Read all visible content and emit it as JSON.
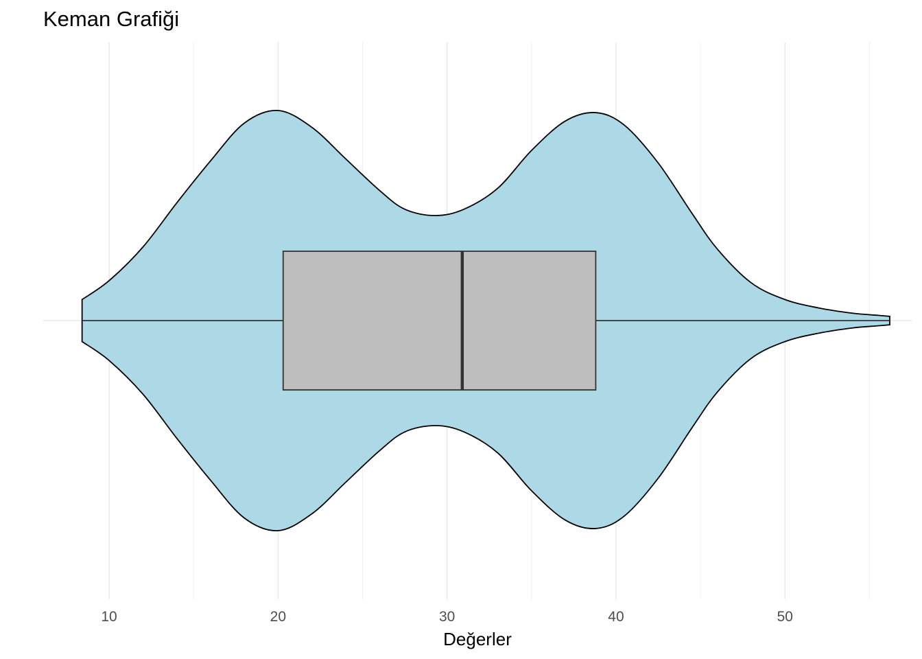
{
  "chart_data": {
    "type": "violin",
    "title": "Keman Grafiği",
    "xlabel": "Değerler",
    "ylabel": "",
    "xlim": [
      6.1,
      57.5
    ],
    "x_ticks": [
      10,
      20,
      30,
      40,
      50
    ],
    "x_tick_labels": [
      "10",
      "20",
      "30",
      "40",
      "50"
    ],
    "grid": true,
    "legend": "none",
    "violin": {
      "fill": "#ADD8E6",
      "stroke": "#000000",
      "range": [
        8.4,
        56.2
      ],
      "density": [
        {
          "x": 8.4,
          "w": 0.1
        },
        {
          "x": 10.0,
          "w": 0.19
        },
        {
          "x": 12.0,
          "w": 0.35
        },
        {
          "x": 14.0,
          "w": 0.56
        },
        {
          "x": 16.0,
          "w": 0.76
        },
        {
          "x": 18.0,
          "w": 0.94
        },
        {
          "x": 20.0,
          "w": 1.0
        },
        {
          "x": 22.0,
          "w": 0.92
        },
        {
          "x": 24.0,
          "w": 0.77
        },
        {
          "x": 26.0,
          "w": 0.62
        },
        {
          "x": 27.5,
          "w": 0.53
        },
        {
          "x": 29.3,
          "w": 0.5
        },
        {
          "x": 31.0,
          "w": 0.53
        },
        {
          "x": 33.0,
          "w": 0.63
        },
        {
          "x": 35.0,
          "w": 0.81
        },
        {
          "x": 37.0,
          "w": 0.95
        },
        {
          "x": 38.8,
          "w": 0.99
        },
        {
          "x": 40.5,
          "w": 0.93
        },
        {
          "x": 42.5,
          "w": 0.75
        },
        {
          "x": 44.5,
          "w": 0.51
        },
        {
          "x": 46.0,
          "w": 0.34
        },
        {
          "x": 48.0,
          "w": 0.18
        },
        {
          "x": 50.0,
          "w": 0.1
        },
        {
          "x": 52.0,
          "w": 0.06
        },
        {
          "x": 54.0,
          "w": 0.035
        },
        {
          "x": 55.5,
          "w": 0.025
        },
        {
          "x": 56.2,
          "w": 0.02
        }
      ]
    },
    "boxplot": {
      "fill": "#BEBEBE",
      "stroke": "#333333",
      "min": 8.4,
      "q1": 20.3,
      "median": 30.9,
      "q3": 38.8,
      "max": 56.2
    }
  }
}
